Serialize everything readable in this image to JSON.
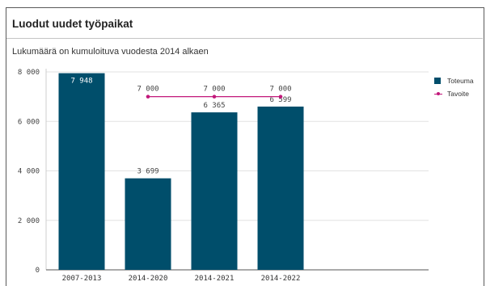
{
  "title": "Luodut uudet työpaikat",
  "subtitle": "Lukumäärä on kumuloituva vuodesta 2014 alkaen",
  "colors": {
    "bar": "#004e6b",
    "target": "#c2187a",
    "grid": "#e2e2e2",
    "axis": "#555555"
  },
  "chart_data": {
    "type": "bar",
    "categories": [
      "2007-2013",
      "2014-2020",
      "2014-2021",
      "2014-2022"
    ],
    "ylim": [
      0,
      8000
    ],
    "yticks": [
      0,
      2000,
      4000,
      6000,
      8000
    ],
    "ytick_labels": [
      "0",
      "2 000",
      "4 000",
      "6 000",
      "8 000"
    ],
    "grid": true,
    "legend_position": "top-right",
    "series": [
      {
        "name": "Toteuma",
        "type": "bar",
        "values": [
          7948,
          3699,
          6365,
          6599
        ],
        "labels": [
          "7 948",
          "3 699",
          "6 365",
          "6 599"
        ]
      },
      {
        "name": "Tavoite",
        "type": "line",
        "values": [
          null,
          7000,
          7000,
          7000
        ],
        "labels": [
          "",
          "7 000",
          "7 000",
          "7 000"
        ]
      }
    ]
  }
}
